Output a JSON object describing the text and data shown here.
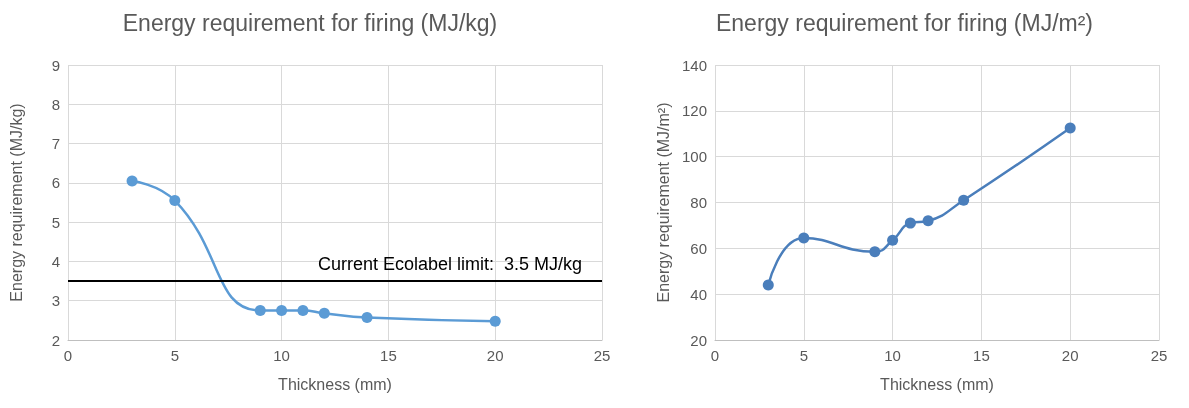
{
  "chart_data": [
    {
      "type": "line",
      "title": "Energy requirement for firing (MJ/kg)",
      "xlabel": "Thickness (mm)",
      "ylabel": "Energy requirement (MJ/kg)",
      "x": [
        3,
        5,
        9,
        10,
        11,
        12,
        14,
        20
      ],
      "series": [
        {
          "color": "#5b9bd5",
          "values": [
            6.05,
            5.55,
            2.75,
            2.75,
            2.75,
            2.68,
            2.57,
            2.48
          ]
        }
      ],
      "xlim": [
        0,
        25
      ],
      "xticks": [
        0,
        5,
        10,
        15,
        20,
        25
      ],
      "ylim": [
        2,
        9
      ],
      "yticks": [
        2,
        3,
        4,
        5,
        6,
        7,
        8,
        9
      ],
      "ref_lines": [
        {
          "axis": "y",
          "value": 3.5,
          "label": "Current Ecolabel limit:  3.5 MJ/kg",
          "color": "#000000"
        }
      ],
      "grid": true,
      "marker": "circle",
      "line_style": "solid"
    },
    {
      "type": "line",
      "title": "Energy requirement for firing (MJ/m²)",
      "xlabel": "Thickness (mm)",
      "ylabel": "Energy requirement (MJ/m²)",
      "x": [
        3,
        5,
        9,
        10,
        11,
        12,
        14,
        20
      ],
      "series": [
        {
          "color": "#4a7ebb",
          "values": [
            44,
            64.5,
            58.5,
            63.5,
            71,
            72,
            81,
            112.5
          ]
        }
      ],
      "xlim": [
        0,
        25
      ],
      "xticks": [
        0,
        5,
        10,
        15,
        20,
        25
      ],
      "ylim": [
        20,
        140
      ],
      "yticks": [
        20,
        40,
        60,
        80,
        100,
        120,
        140
      ],
      "grid": true,
      "marker": "circle",
      "line_style": "solid"
    }
  ]
}
